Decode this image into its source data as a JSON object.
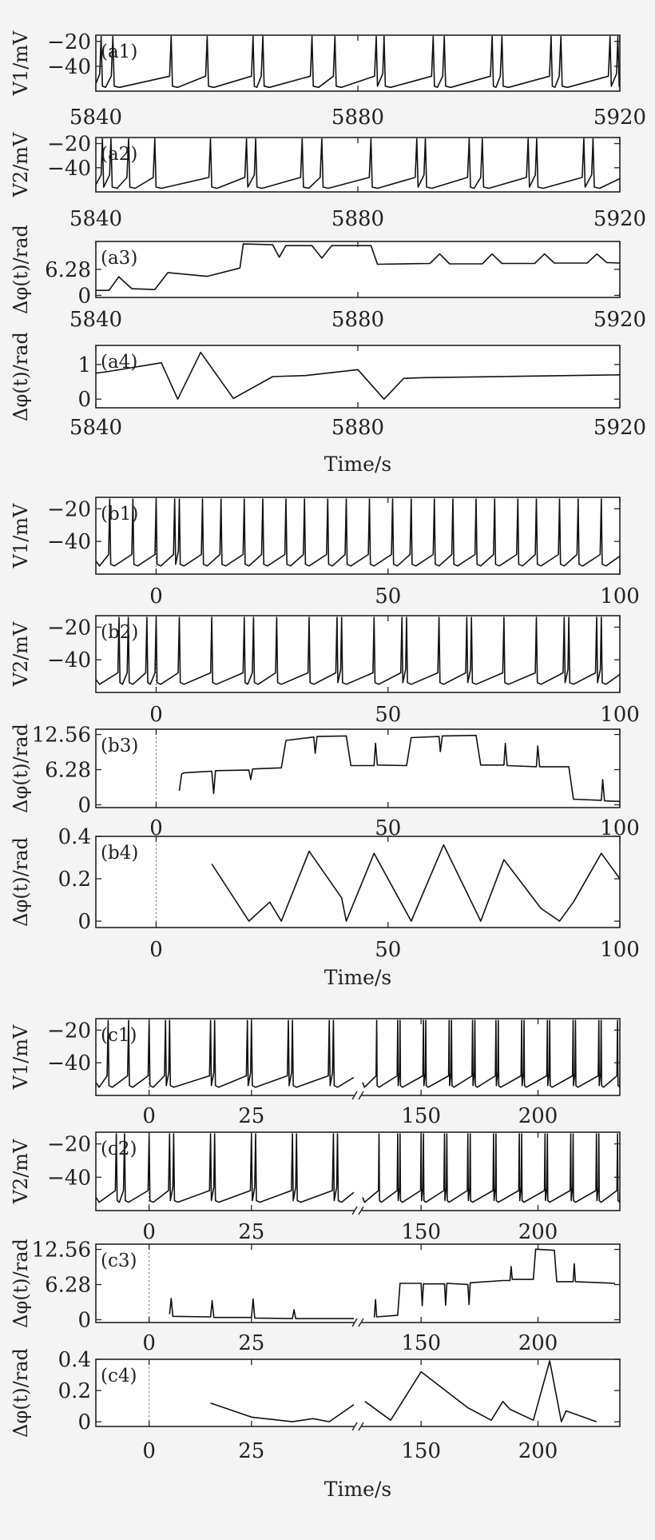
{
  "chart_data": [
    {
      "group": "a",
      "type": "line",
      "x_title": "Time/s",
      "xlim": [
        5840,
        5920
      ],
      "x_ticks": [
        "5840",
        "5880",
        "5920"
      ],
      "panels": [
        {
          "tag": "(a1)",
          "ylabel": "V1/mV",
          "ylim": [
            -60,
            -15
          ],
          "y_ticks": [
            {
              "v": -20,
              "t": "−20"
            },
            {
              "v": -40,
              "t": "−40"
            }
          ],
          "trace": {
            "kind": "spikes",
            "baseline": -57,
            "ramp_to": -48,
            "peak": -16,
            "spike_times": [
              5840.8,
              5842.6,
              5851.5,
              5857.0,
              5864.0,
              5865.5,
              5873.0,
              5876.5,
              5882.8,
              5884.0,
              5891.5,
              5893.2,
              5900.5,
              5902.0,
              5909.5,
              5911.0,
              5918.5,
              5919.7
            ]
          }
        },
        {
          "tag": "(a2)",
          "ylabel": "V2/mV",
          "ylim": [
            -60,
            -15
          ],
          "y_ticks": [
            {
              "v": -20,
              "t": "−20"
            },
            {
              "v": -40,
              "t": "−40"
            }
          ],
          "trace": {
            "kind": "spikes",
            "baseline": -57,
            "ramp_to": -48,
            "peak": -16,
            "spike_times": [
              5841.0,
              5842.3,
              5845.0,
              5849.0,
              5857.5,
              5863.0,
              5864.4,
              5871.5,
              5874.5,
              5882.0,
              5889.0,
              5890.3,
              5897.0,
              5899.0,
              5906.0,
              5907.3,
              5914.5,
              5915.9
            ]
          }
        },
        {
          "tag": "(a3)",
          "ylabel": "Δφ(t)/rad",
          "ylim": [
            -0.5,
            13
          ],
          "y_ticks": [
            {
              "v": 0,
              "t": "0"
            },
            {
              "v": 6.28,
              "t": "6.28"
            }
          ],
          "trace": {
            "kind": "poly",
            "x": [
              5840,
              5842,
              5843.5,
              5845.5,
              5849,
              5851,
              5857,
              5862,
              5862.5,
              5867,
              5868,
              5869,
              5873,
              5874.5,
              5876,
              5882,
              5883,
              5891,
              5892.5,
              5894,
              5899,
              5900.5,
              5902,
              5907,
              5908.5,
              5910,
              5915,
              5916.5,
              5918,
              5920
            ],
            "y": [
              1.2,
              1.2,
              4.5,
              1.6,
              1.4,
              5.5,
              4.6,
              6.6,
              12.4,
              12.2,
              9.2,
              12.0,
              12.0,
              9.0,
              12.0,
              12.0,
              7.5,
              7.7,
              10.0,
              7.6,
              7.6,
              10.0,
              7.7,
              7.7,
              10.0,
              7.8,
              7.8,
              10.0,
              7.9,
              7.8
            ]
          }
        },
        {
          "tag": "(a4)",
          "ylabel": "Δφ(t)/rad",
          "ylim": [
            -0.25,
            1.55
          ],
          "y_ticks": [
            {
              "v": 0,
              "t": "0"
            },
            {
              "v": 1,
              "t": "1"
            }
          ],
          "trace": {
            "kind": "poly",
            "x": [
              5840,
              5842,
              5850,
              5852.5,
              5856,
              5861,
              5867,
              5872,
              5880,
              5884,
              5887,
              5890,
              5920
            ],
            "y": [
              0.75,
              0.8,
              1.05,
              0.0,
              1.35,
              0.02,
              0.65,
              0.68,
              0.85,
              0.0,
              0.6,
              0.62,
              0.7
            ]
          }
        }
      ]
    },
    {
      "group": "b",
      "type": "line",
      "x_title": "Time/s",
      "xlim": [
        -13,
        100
      ],
      "x_ticks": [
        "0",
        "50",
        "100"
      ],
      "panels": [
        {
          "tag": "(b1)",
          "ylabel": "V1/mV",
          "ylim": [
            -60,
            -13
          ],
          "y_ticks": [
            {
              "v": -20,
              "t": "−20"
            },
            {
              "v": -40,
              "t": "−40"
            }
          ],
          "trace": {
            "kind": "spikes",
            "baseline": -55,
            "ramp_to": -48,
            "peak": -14,
            "spike_times": [
              -10,
              -5,
              0,
              4,
              5,
              10,
              14,
              19,
              23,
              28,
              32,
              37,
              41,
              46,
              51,
              55,
              60,
              64,
              69,
              73,
              78,
              82,
              87,
              91,
              96
            ]
          }
        },
        {
          "tag": "(b2)",
          "ylabel": "V2/mV",
          "ylim": [
            -60,
            -13
          ],
          "y_ticks": [
            {
              "v": -20,
              "t": "−20"
            },
            {
              "v": -40,
              "t": "−40"
            }
          ],
          "trace": {
            "kind": "spikes",
            "baseline": -55,
            "ramp_to": -48,
            "peak": -14,
            "spike_times": [
              -8,
              -6,
              -2,
              0,
              5,
              12,
              19,
              21,
              26,
              33,
              39,
              40,
              47,
              53,
              54,
              61,
              67,
              68,
              75,
              82,
              88,
              89,
              95,
              96
            ]
          }
        },
        {
          "tag": "(b3)",
          "ylabel": "Δφ(t)/rad",
          "ylim": [
            -0.5,
            13.5
          ],
          "y_ticks": [
            {
              "v": 0,
              "t": "0"
            },
            {
              "v": 6.28,
              "t": "6.28"
            },
            {
              "v": 12.56,
              "t": "12.56"
            }
          ],
          "trace": {
            "kind": "poly",
            "x": [
              5,
              5.5,
              6,
              12,
              12.4,
              12.8,
              20,
              20.4,
              20.8,
              27,
              28,
              34,
              34.3,
              34.7,
              41,
              42,
              47,
              47.3,
              47.7,
              54,
              55,
              61,
              61.3,
              61.7,
              69,
              70,
              75,
              75.3,
              75.7,
              82,
              82.3,
              82.7,
              89,
              90,
              96,
              96.3,
              96.7,
              100
            ],
            "y": [
              2.5,
              5.5,
              5.7,
              6.0,
              2.0,
              6.1,
              6.2,
              4.5,
              6.4,
              6.6,
              11.5,
              12.1,
              9.2,
              12.2,
              12.3,
              7.0,
              7.0,
              11.0,
              7.1,
              7.0,
              12.0,
              12.2,
              9.5,
              12.3,
              12.4,
              7.1,
              7.1,
              11.0,
              7.0,
              6.8,
              10.5,
              6.8,
              6.8,
              1.0,
              0.8,
              4.5,
              0.7,
              0.6
            ]
          }
        },
        {
          "tag": "(b4)",
          "ylabel": "Δφ(t)/rad",
          "ylim": [
            -0.03,
            0.4
          ],
          "y_ticks": [
            {
              "v": 0,
              "t": "0"
            },
            {
              "v": 0.2,
              "t": "0.2"
            },
            {
              "v": 0.4,
              "t": "0.4"
            }
          ],
          "trace": {
            "kind": "poly",
            "x": [
              12,
              20,
              24.5,
              27,
              33,
              40,
              41,
              47,
              55,
              62,
              70,
              75,
              83,
              87,
              90,
              96,
              100
            ],
            "y": [
              0.27,
              0.0,
              0.09,
              0.0,
              0.33,
              0.11,
              0.0,
              0.32,
              0.0,
              0.36,
              0.0,
              0.29,
              0.06,
              0.0,
              0.09,
              0.32,
              0.2
            ]
          }
        }
      ]
    },
    {
      "group": "c",
      "type": "line",
      "x_title": "Time/s",
      "broken_axis": true,
      "segments": [
        {
          "xlim": [
            -13,
            50
          ]
        },
        {
          "xlim": [
            125,
            235
          ]
        }
      ],
      "x_ticks": [
        {
          "seg": 0,
          "v": 0,
          "t": "0"
        },
        {
          "seg": 0,
          "v": 25,
          "t": "25"
        },
        {
          "seg": 1,
          "v": 150,
          "t": "150"
        },
        {
          "seg": 1,
          "v": 200,
          "t": "200"
        }
      ],
      "panels": [
        {
          "tag": "(c1)",
          "ylabel": "V1/mV",
          "ylim": [
            -60,
            -13
          ],
          "y_ticks": [
            {
              "v": -20,
              "t": "−20"
            },
            {
              "v": -40,
              "t": "−40"
            }
          ],
          "trace": {
            "kind": "spikes",
            "baseline": -55,
            "ramp_to": -48,
            "peak": -14,
            "spike_times": [
              [
                -10,
                -5,
                0,
                4,
                5,
                15,
                16,
                24,
                25,
                34,
                35,
                44,
                45
              ],
              [
                131,
                140,
                141,
                151,
                152,
                162,
                163,
                172,
                173,
                182,
                183,
                193,
                194,
                204,
                205,
                215,
                216,
                226,
                227,
                234
              ]
            ]
          }
        },
        {
          "tag": "(c2)",
          "ylabel": "V2/mV",
          "ylim": [
            -60,
            -13
          ],
          "y_ticks": [
            {
              "v": -20,
              "t": "−20"
            },
            {
              "v": -40,
              "t": "−40"
            }
          ],
          "trace": {
            "kind": "spikes",
            "baseline": -55,
            "ramp_to": -48,
            "peak": -14,
            "spike_times": [
              [
                -8,
                -6,
                0,
                5,
                6,
                15,
                16,
                25,
                26,
                35,
                36,
                45,
                46
              ],
              [
                132,
                140,
                141,
                150,
                151,
                160,
                161,
                170,
                171,
                181,
                182,
                192,
                193,
                203,
                204,
                214,
                215,
                225,
                226,
                234
              ]
            ]
          }
        },
        {
          "tag": "(c3)",
          "ylabel": "Δφ(t)/rad",
          "ylim": [
            -0.5,
            13.5
          ],
          "y_ticks": [
            {
              "v": 0,
              "t": "0"
            },
            {
              "v": 6.28,
              "t": "6.28"
            },
            {
              "v": 12.56,
              "t": "12.56"
            }
          ],
          "trace": {
            "kind": "poly",
            "segments": [
              {
                "x": [
                  5,
                  5.4,
                  5.8,
                  15,
                  15.4,
                  15.8,
                  25,
                  25.4,
                  25.8,
                  35,
                  35.4,
                  35.8,
                  50
                ],
                "y": [
                  1.0,
                  3.8,
                  0.6,
                  0.5,
                  3.4,
                  0.4,
                  0.4,
                  3.7,
                  0.3,
                  0.2,
                  1.8,
                  0.2,
                  0.2
                ]
              },
              {
                "x": [
                  130,
                  130.5,
                  131,
                  140,
                  141,
                  150,
                  150.5,
                  151,
                  160,
                  160.5,
                  161,
                  170,
                  170.5,
                  171,
                  185,
                  188,
                  188.5,
                  189,
                  198,
                  199,
                  207,
                  208,
                  215,
                  215.5,
                  216,
                  233
                ],
                "y": [
                  0.4,
                  3.6,
                  0.5,
                  0.8,
                  6.5,
                  6.5,
                  2.5,
                  6.4,
                  6.4,
                  2.6,
                  6.5,
                  6.3,
                  2.7,
                  6.6,
                  7.0,
                  7.0,
                  9.5,
                  7.2,
                  7.2,
                  12.6,
                  12.4,
                  6.8,
                  6.8,
                  10.0,
                  6.8,
                  6.5
                ]
              }
            ]
          }
        },
        {
          "tag": "(c4)",
          "ylabel": "Δφ(t)/rad",
          "ylim": [
            -0.03,
            0.4
          ],
          "y_ticks": [
            {
              "v": 0,
              "t": "0"
            },
            {
              "v": 0.2,
              "t": "0.2"
            },
            {
              "v": 0.4,
              "t": "0.4"
            }
          ],
          "trace": {
            "kind": "poly",
            "segments": [
              {
                "x": [
                  15,
                  25,
                  35,
                  40,
                  44,
                  50
                ],
                "y": [
                  0.12,
                  0.03,
                  0.0,
                  0.02,
                  0.0,
                  0.11
                ]
              },
              {
                "x": [
                  126,
                  137,
                  150,
                  170,
                  180,
                  185,
                  188,
                  198,
                  205,
                  210,
                  212,
                  225
                ],
                "y": [
                  0.13,
                  0.01,
                  0.32,
                  0.09,
                  0.01,
                  0.13,
                  0.08,
                  0.01,
                  0.39,
                  0.0,
                  0.07,
                  0.0
                ]
              }
            ]
          }
        }
      ]
    }
  ]
}
